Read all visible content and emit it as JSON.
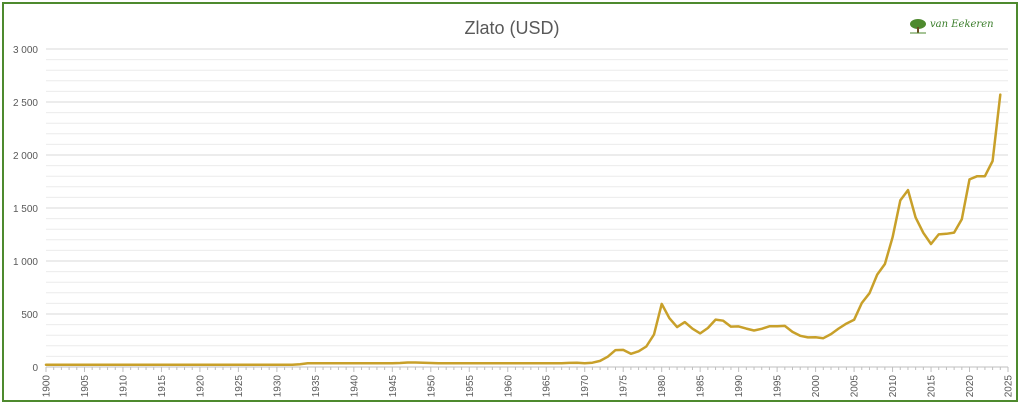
{
  "logo": {
    "text": "van Eekeren",
    "icon": "tree-icon"
  },
  "colors": {
    "line": "#c8a02a",
    "grid": "#d9d9d9",
    "axis": "#bfbfbf",
    "text": "#595959",
    "border": "#4e8a2e"
  },
  "chart_data": {
    "type": "line",
    "title": "Zlato (USD)",
    "xlabel": "",
    "ylabel": "",
    "xlim": [
      1900,
      2025
    ],
    "ylim": [
      0,
      3000
    ],
    "grid": true,
    "x_ticks": [
      1900,
      1905,
      1910,
      1915,
      1920,
      1925,
      1930,
      1935,
      1940,
      1945,
      1950,
      1955,
      1960,
      1965,
      1970,
      1975,
      1980,
      1985,
      1990,
      1995,
      2000,
      2005,
      2010,
      2015,
      2020,
      2025
    ],
    "y_ticks": [
      0,
      500,
      1000,
      1500,
      2000,
      2500,
      3000
    ],
    "y_tick_labels": [
      "0",
      "500",
      "1 000",
      "1 500",
      "2 000",
      "2 500",
      "3 000"
    ],
    "series": [
      {
        "name": "",
        "x": [
          1900,
          1905,
          1910,
          1915,
          1920,
          1925,
          1930,
          1932,
          1933,
          1934,
          1935,
          1940,
          1945,
          1946,
          1947,
          1948,
          1949,
          1950,
          1951,
          1955,
          1960,
          1965,
          1967,
          1968,
          1969,
          1970,
          1971,
          1972,
          1973,
          1974,
          1975,
          1976,
          1977,
          1978,
          1979,
          1980,
          1981,
          1982,
          1983,
          1984,
          1985,
          1986,
          1987,
          1988,
          1989,
          1990,
          1991,
          1992,
          1993,
          1994,
          1995,
          1996,
          1997,
          1998,
          1999,
          2000,
          2001,
          2002,
          2003,
          2004,
          2005,
          2006,
          2007,
          2008,
          2009,
          2010,
          2011,
          2012,
          2013,
          2014,
          2015,
          2016,
          2017,
          2018,
          2019,
          2020,
          2021,
          2022,
          2023,
          2024
        ],
        "values": [
          21,
          21,
          21,
          21,
          21,
          21,
          21,
          21,
          26,
          35,
          35,
          35,
          35,
          38,
          42,
          42,
          40,
          38,
          35,
          35,
          35,
          35,
          35,
          39,
          41,
          36,
          41,
          58,
          97,
          159,
          161,
          125,
          148,
          193,
          307,
          595,
          460,
          376,
          424,
          361,
          317,
          368,
          447,
          437,
          381,
          383,
          362,
          344,
          360,
          384,
          384,
          388,
          331,
          294,
          279,
          280,
          272,
          310,
          363,
          409,
          445,
          604,
          696,
          872,
          972,
          1225,
          1572,
          1669,
          1411,
          1266,
          1160,
          1251,
          1257,
          1268,
          1393,
          1770,
          1800,
          1800,
          1943,
          2570
        ]
      }
    ]
  }
}
